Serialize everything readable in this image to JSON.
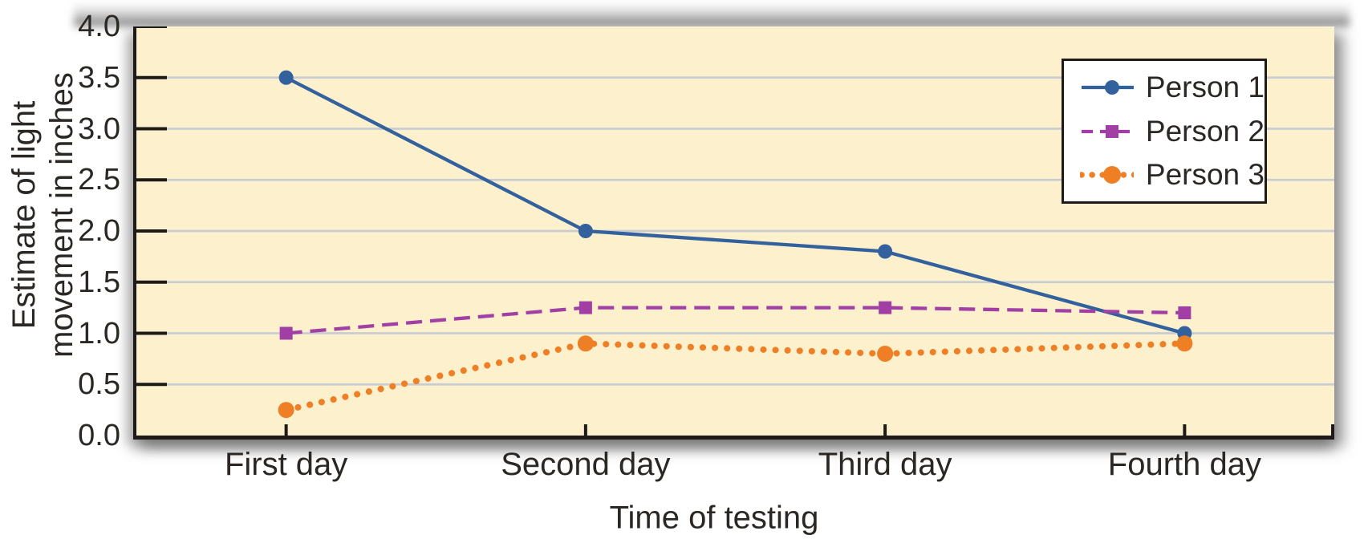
{
  "chart_data": {
    "type": "line",
    "categories": [
      "First day",
      "Second day",
      "Third day",
      "Fourth day"
    ],
    "series": [
      {
        "name": "Person 1",
        "values": [
          3.5,
          2.0,
          1.8,
          1.0
        ],
        "color": "#33619e",
        "line_style": "solid",
        "marker": "circle"
      },
      {
        "name": "Person 2",
        "values": [
          1.0,
          1.25,
          1.25,
          1.2
        ],
        "color": "#a23fa5",
        "line_style": "dashed",
        "marker": "square"
      },
      {
        "name": "Person 3",
        "values": [
          0.25,
          0.9,
          0.8,
          0.9
        ],
        "color": "#ee7f25",
        "line_style": "dotted",
        "marker": "circle"
      }
    ],
    "title": "",
    "xlabel": "Time of testing",
    "ylabel": "Estimate of light movement in inches",
    "ylabel_lines": [
      "Estimate of light",
      "movement in inches"
    ],
    "ylim": [
      0,
      4
    ],
    "ytick_step": 0.5,
    "grid": true,
    "legend_position": "upper right",
    "colors": {
      "plot_background": "#fcf0cd",
      "gridline": "#c9ccd2",
      "axis": "#1d1a19",
      "text": "#2b2724"
    }
  }
}
